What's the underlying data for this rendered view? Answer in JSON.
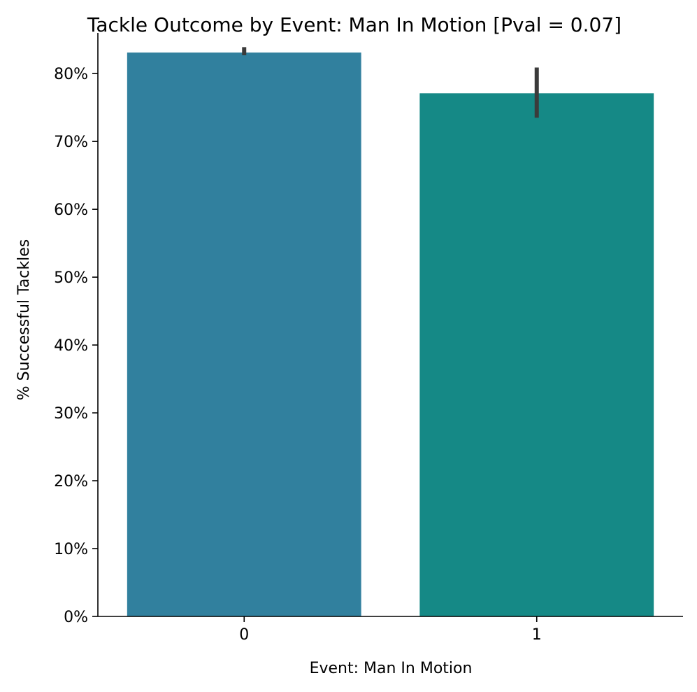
{
  "chart_data": {
    "type": "bar",
    "title": "Tackle Outcome by Event: Man In Motion [Pval = 0.07]",
    "xlabel": "Event: Man In Motion",
    "ylabel": "% Successful Tackles",
    "categories": [
      "0",
      "1"
    ],
    "values": [
      83.1,
      77.1
    ],
    "error_bars": [
      {
        "low": 82.7,
        "high": 83.9
      },
      {
        "low": 73.5,
        "high": 80.9
      }
    ],
    "bar_colors": [
      "#31809e",
      "#158986"
    ],
    "error_bar_color": "#3b3b3b",
    "ylim": [
      0,
      86
    ],
    "yticks": [
      0,
      10,
      20,
      30,
      40,
      50,
      60,
      70,
      80
    ],
    "ytick_labels": [
      "0%",
      "10%",
      "20%",
      "30%",
      "40%",
      "50%",
      "60%",
      "70%",
      "80%"
    ],
    "grid": false,
    "legend": "none"
  }
}
